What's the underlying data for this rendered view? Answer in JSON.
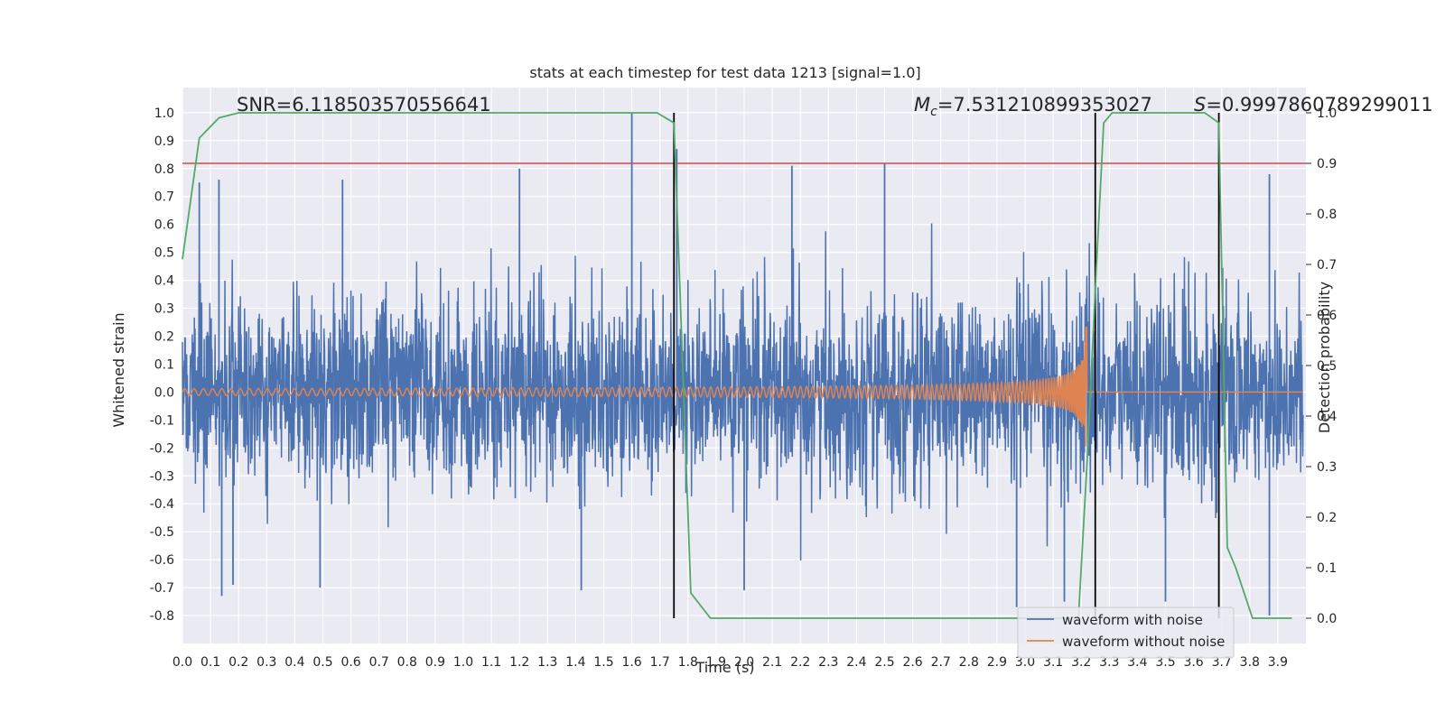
{
  "chart_data": {
    "type": "line",
    "title": "stats at each timestep for test data 1213 [signal=1.0]",
    "xlabel": "Time (s)",
    "ylabel": "Whitened strain",
    "y2label": "Detection probability",
    "xlim": [
      0.0,
      4.0
    ],
    "ylim": [
      -0.9,
      1.09
    ],
    "y2lim": [
      -0.05,
      1.05
    ],
    "xticks": [
      "0.0",
      "0.1",
      "0.2",
      "0.3",
      "0.4",
      "0.5",
      "0.6",
      "0.7",
      "0.8",
      "0.9",
      "1.0",
      "1.1",
      "1.2",
      "1.3",
      "1.4",
      "1.5",
      "1.6",
      "1.7",
      "1.8",
      "1.9",
      "2.0",
      "2.1",
      "2.2",
      "2.3",
      "2.4",
      "2.5",
      "2.6",
      "2.7",
      "2.8",
      "2.9",
      "3.0",
      "3.1",
      "3.2",
      "3.3",
      "3.4",
      "3.5",
      "3.6",
      "3.7",
      "3.8",
      "3.9"
    ],
    "yticks": [
      "1.0",
      "0.9",
      "0.8",
      "0.7",
      "0.6",
      "0.5",
      "0.4",
      "0.3",
      "0.2",
      "0.1",
      "0.0",
      "-0.1",
      "-0.2",
      "-0.3",
      "-0.4",
      "-0.5",
      "-0.6",
      "-0.7",
      "-0.8"
    ],
    "y2ticks": [
      "1.0",
      "0.9",
      "0.8",
      "0.7",
      "0.6",
      "0.5",
      "0.4",
      "0.3",
      "0.2",
      "0.1",
      "0.0"
    ],
    "annotations": {
      "snr": "SNR=6.118503570556641",
      "mc_symbol": "M",
      "mc_sub": "c",
      "mc_value": "=7.531210899353027",
      "s_symbol": "S",
      "s_value": "=0.9997860789299011"
    },
    "legend": {
      "position": "lower-right",
      "entries": [
        "waveform with noise",
        "waveform without noise"
      ]
    },
    "colors": {
      "noise": "#4c72b0",
      "signal": "#dd8452",
      "probability": "#55a868",
      "threshold": "#c44e52",
      "event_lines": "#000000",
      "background": "#eaeaf2",
      "grid": "#ffffff"
    },
    "threshold": 0.9,
    "event_lines_x": [
      1.75,
      3.25,
      3.69
    ],
    "merger_time": 3.22,
    "noise_sigma": 0.17,
    "noise_spikes": [
      [
        1.6,
        1.0
      ],
      [
        1.76,
        0.87
      ],
      [
        0.06,
        0.75
      ],
      [
        0.13,
        0.76
      ],
      [
        0.57,
        0.76
      ],
      [
        1.2,
        0.8
      ],
      [
        2.17,
        0.81
      ],
      [
        2.5,
        0.82
      ],
      [
        3.87,
        0.78
      ],
      [
        0.14,
        -0.73
      ],
      [
        1.42,
        -0.71
      ],
      [
        3.87,
        -0.8
      ],
      [
        2.97,
        -0.77
      ],
      [
        3.14,
        -0.75
      ],
      [
        3.5,
        -0.75
      ],
      [
        0.49,
        -0.7
      ],
      [
        0.18,
        -0.69
      ],
      [
        2.0,
        -0.71
      ]
    ],
    "detection_probability": {
      "x": [
        0.0,
        0.06,
        0.13,
        0.2,
        0.5,
        1.0,
        1.5,
        1.69,
        1.75,
        1.81,
        1.88,
        1.94,
        2.2,
        2.6,
        3.0,
        3.19,
        3.22,
        3.25,
        3.28,
        3.31,
        3.6,
        3.64,
        3.69,
        3.72,
        3.75,
        3.81,
        3.88,
        3.95
      ],
      "values": [
        0.71,
        0.95,
        0.99,
        1.0,
        1.0,
        1.0,
        1.0,
        1.0,
        0.98,
        0.05,
        0.0,
        0.0,
        0.0,
        0.0,
        0.0,
        0.0,
        0.3,
        0.65,
        0.98,
        1.0,
        1.0,
        1.0,
        0.98,
        0.14,
        0.1,
        0.0,
        0.0,
        0.0
      ]
    }
  }
}
